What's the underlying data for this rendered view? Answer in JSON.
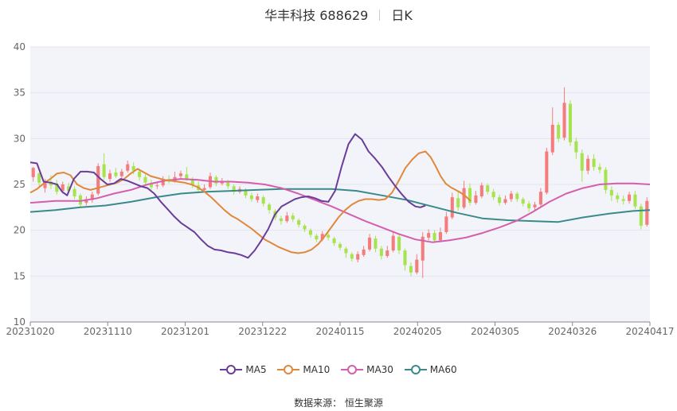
{
  "header": {
    "stock_name": "华丰科技 688629",
    "period": "日K"
  },
  "source": "数据来源： 恒生聚源",
  "chart_data": {
    "type": "candlestick",
    "ylim": [
      10,
      40
    ],
    "yticks": [
      "40",
      "35",
      "30",
      "25",
      "20",
      "15",
      "10"
    ],
    "x_labels": [
      "20231020",
      "20231110",
      "20231201",
      "20231222",
      "20240115",
      "20240205",
      "20240305",
      "20240326",
      "20240417"
    ],
    "colors": {
      "up": "#f47c7c",
      "down": "#a6e34d",
      "MA5": "#6a3d9a",
      "MA10": "#e0883c",
      "MA30": "#d45fac",
      "MA60": "#3a8a8a"
    },
    "candles": [
      [
        25.8,
        26.8,
        26.9,
        25.3
      ],
      [
        26.2,
        25.2,
        26.3,
        24.8
      ],
      [
        24.6,
        25.4,
        25.6,
        24.1
      ],
      [
        25.3,
        24.9,
        26.0,
        24.5
      ],
      [
        25.1,
        24.2,
        25.5,
        23.9
      ],
      [
        24.3,
        25.0,
        25.3,
        24.0
      ],
      [
        24.8,
        24.3,
        25.2,
        24.0
      ],
      [
        24.5,
        23.7,
        24.8,
        23.4
      ],
      [
        23.8,
        22.8,
        24.0,
        22.5
      ],
      [
        23.0,
        23.4,
        23.7,
        22.7
      ],
      [
        23.3,
        23.9,
        24.2,
        23.0
      ],
      [
        24.0,
        27.0,
        27.3,
        23.8
      ],
      [
        27.2,
        25.8,
        28.4,
        25.5
      ],
      [
        25.6,
        26.2,
        26.6,
        25.3
      ],
      [
        26.3,
        25.9,
        26.8,
        25.7
      ],
      [
        25.9,
        26.4,
        26.7,
        25.6
      ],
      [
        26.5,
        27.2,
        27.6,
        26.3
      ],
      [
        27.0,
        26.5,
        27.4,
        26.1
      ],
      [
        26.4,
        25.8,
        26.7,
        25.4
      ],
      [
        25.8,
        25.2,
        26.1,
        24.9
      ],
      [
        25.1,
        24.7,
        25.5,
        24.4
      ],
      [
        24.8,
        24.9,
        25.3,
        24.5
      ],
      [
        24.9,
        25.6,
        25.9,
        24.7
      ],
      [
        25.6,
        25.3,
        26.0,
        25.1
      ],
      [
        25.3,
        25.8,
        26.4,
        25.2
      ],
      [
        25.9,
        26.2,
        26.5,
        25.6
      ],
      [
        26.1,
        25.6,
        26.9,
        25.4
      ],
      [
        25.5,
        24.9,
        25.8,
        24.6
      ],
      [
        24.9,
        24.4,
        25.3,
        24.1
      ],
      [
        24.4,
        24.6,
        25.0,
        24.2
      ],
      [
        24.7,
        25.9,
        26.3,
        24.5
      ],
      [
        25.8,
        25.1,
        26.0,
        24.8
      ],
      [
        25.1,
        25.3,
        25.7,
        24.9
      ],
      [
        25.2,
        24.8,
        25.5,
        24.5
      ],
      [
        24.8,
        24.2,
        25.0,
        23.9
      ],
      [
        24.2,
        24.5,
        24.8,
        24.0
      ],
      [
        24.4,
        23.8,
        24.6,
        23.5
      ],
      [
        23.8,
        23.4,
        24.1,
        23.1
      ],
      [
        23.3,
        23.7,
        24.0,
        23.0
      ],
      [
        23.6,
        22.9,
        23.8,
        22.6
      ],
      [
        22.8,
        22.2,
        23.0,
        21.8
      ],
      [
        22.1,
        21.4,
        22.3,
        21.1
      ],
      [
        21.3,
        21.0,
        21.6,
        20.6
      ],
      [
        21.0,
        21.6,
        22.0,
        20.8
      ],
      [
        21.6,
        21.2,
        21.9,
        20.9
      ],
      [
        21.1,
        20.6,
        21.3,
        20.3
      ],
      [
        20.5,
        20.1,
        20.7,
        19.8
      ],
      [
        20.0,
        19.5,
        20.2,
        19.2
      ],
      [
        19.4,
        19.0,
        19.6,
        18.7
      ],
      [
        19.0,
        19.6,
        19.9,
        18.8
      ],
      [
        19.5,
        19.2,
        19.7,
        18.9
      ],
      [
        19.1,
        18.6,
        19.3,
        18.3
      ],
      [
        18.5,
        18.1,
        18.7,
        17.8
      ],
      [
        18.0,
        17.5,
        18.2,
        17.0
      ],
      [
        17.4,
        16.9,
        17.6,
        16.6
      ],
      [
        16.8,
        17.4,
        17.7,
        16.5
      ],
      [
        17.3,
        17.9,
        18.3,
        17.1
      ],
      [
        17.9,
        19.2,
        19.6,
        17.7
      ],
      [
        19.1,
        18.0,
        19.4,
        17.6
      ],
      [
        18.0,
        17.2,
        18.3,
        16.8
      ],
      [
        17.2,
        17.8,
        18.3,
        17.0
      ],
      [
        17.8,
        19.4,
        19.9,
        17.6
      ],
      [
        19.3,
        17.8,
        19.6,
        17.4
      ],
      [
        17.8,
        16.2,
        18.0,
        15.6
      ],
      [
        16.1,
        15.4,
        16.5,
        15.0
      ],
      [
        15.4,
        16.8,
        17.4,
        15.2
      ],
      [
        16.7,
        19.3,
        19.8,
        14.8
      ],
      [
        19.2,
        19.7,
        20.1,
        18.9
      ],
      [
        19.7,
        18.9,
        20.0,
        18.6
      ],
      [
        18.9,
        19.8,
        20.3,
        18.7
      ],
      [
        19.8,
        21.5,
        22.0,
        19.6
      ],
      [
        21.4,
        23.6,
        24.1,
        21.2
      ],
      [
        23.5,
        22.5,
        24.3,
        22.1
      ],
      [
        22.5,
        24.6,
        25.4,
        22.3
      ],
      [
        24.6,
        23.0,
        25.1,
        22.7
      ],
      [
        23.0,
        23.8,
        24.3,
        22.8
      ],
      [
        23.7,
        24.9,
        25.2,
        23.5
      ],
      [
        24.9,
        24.2,
        25.1,
        23.9
      ],
      [
        24.2,
        23.6,
        24.5,
        23.3
      ],
      [
        23.6,
        23.0,
        23.9,
        22.7
      ],
      [
        23.0,
        23.4,
        23.8,
        22.8
      ],
      [
        23.4,
        24.0,
        24.3,
        23.1
      ],
      [
        24.0,
        23.4,
        24.2,
        23.1
      ],
      [
        23.4,
        22.9,
        23.6,
        22.6
      ],
      [
        22.9,
        22.4,
        23.2,
        22.0
      ],
      [
        22.5,
        22.8,
        23.1,
        22.1
      ],
      [
        22.8,
        24.2,
        24.6,
        22.6
      ],
      [
        24.1,
        28.6,
        29.0,
        23.9
      ],
      [
        28.5,
        31.5,
        33.4,
        28.2
      ],
      [
        31.5,
        30.0,
        31.8,
        29.6
      ],
      [
        30.1,
        33.9,
        35.6,
        29.8
      ],
      [
        33.8,
        29.6,
        34.2,
        29.2
      ],
      [
        29.7,
        28.5,
        30.1,
        27.8
      ],
      [
        28.4,
        26.5,
        28.8,
        25.3
      ],
      [
        26.5,
        27.8,
        28.2,
        26.1
      ],
      [
        27.8,
        26.9,
        28.3,
        26.5
      ],
      [
        26.9,
        26.6,
        27.3,
        26.2
      ],
      [
        26.6,
        24.4,
        26.9,
        24.0
      ],
      [
        24.4,
        23.8,
        24.8,
        23.2
      ],
      [
        23.8,
        23.4,
        24.1,
        23.0
      ],
      [
        23.4,
        23.2,
        23.8,
        22.8
      ],
      [
        23.2,
        23.9,
        24.2,
        22.9
      ],
      [
        23.9,
        22.6,
        24.3,
        22.3
      ],
      [
        22.6,
        20.5,
        22.9,
        20.1
      ],
      [
        20.6,
        23.2,
        23.6,
        20.4
      ]
    ],
    "series": [
      {
        "name": "MA5",
        "values": [
          [
            0,
            27.4
          ],
          [
            4,
            27.3
          ],
          [
            8,
            25.3
          ],
          [
            12,
            25.2
          ],
          [
            16,
            25.0
          ],
          [
            19,
            24.2
          ],
          [
            22,
            23.8
          ],
          [
            26,
            25.6
          ],
          [
            30,
            26.4
          ],
          [
            34,
            26.4
          ],
          [
            38,
            26.3
          ],
          [
            42,
            25.6
          ],
          [
            46,
            25.0
          ],
          [
            50,
            25.1
          ],
          [
            54,
            25.6
          ],
          [
            58,
            25.4
          ],
          [
            62,
            25.1
          ],
          [
            66,
            24.8
          ],
          [
            70,
            24.6
          ],
          [
            74,
            24.0
          ],
          [
            78,
            23.1
          ],
          [
            82,
            22.3
          ],
          [
            86,
            21.5
          ],
          [
            90,
            20.8
          ],
          [
            94,
            20.3
          ],
          [
            98,
            19.8
          ],
          [
            102,
            19.0
          ],
          [
            106,
            18.3
          ],
          [
            110,
            17.9
          ],
          [
            114,
            17.8
          ],
          [
            118,
            17.6
          ],
          [
            122,
            17.5
          ],
          [
            126,
            17.3
          ],
          [
            130,
            17.0
          ],
          [
            134,
            17.8
          ],
          [
            138,
            18.9
          ],
          [
            142,
            20.1
          ],
          [
            146,
            21.7
          ],
          [
            150,
            22.6
          ],
          [
            154,
            23.0
          ],
          [
            158,
            23.4
          ],
          [
            162,
            23.6
          ],
          [
            166,
            23.7
          ],
          [
            170,
            23.5
          ],
          [
            174,
            23.2
          ],
          [
            178,
            23.1
          ],
          [
            182,
            24.3
          ],
          [
            186,
            27.0
          ],
          [
            190,
            29.4
          ],
          [
            194,
            30.5
          ],
          [
            198,
            29.9
          ],
          [
            202,
            28.6
          ],
          [
            206,
            27.8
          ],
          [
            210,
            26.9
          ],
          [
            214,
            25.8
          ],
          [
            218,
            24.8
          ],
          [
            222,
            23.9
          ],
          [
            226,
            23.1
          ],
          [
            230,
            22.6
          ],
          [
            233,
            22.5
          ],
          [
            236,
            22.7
          ]
        ]
      },
      {
        "name": "MA10",
        "values": [
          [
            0,
            24.1
          ],
          [
            4,
            24.5
          ],
          [
            8,
            25.1
          ],
          [
            12,
            25.6
          ],
          [
            16,
            26.2
          ],
          [
            20,
            26.3
          ],
          [
            24,
            26.0
          ],
          [
            28,
            25.0
          ],
          [
            32,
            24.6
          ],
          [
            36,
            24.4
          ],
          [
            40,
            24.6
          ],
          [
            44,
            24.8
          ],
          [
            48,
            25.0
          ],
          [
            52,
            25.2
          ],
          [
            56,
            25.6
          ],
          [
            60,
            26.2
          ],
          [
            64,
            26.7
          ],
          [
            68,
            26.3
          ],
          [
            72,
            25.9
          ],
          [
            76,
            25.7
          ],
          [
            80,
            25.5
          ],
          [
            84,
            25.4
          ],
          [
            88,
            25.3
          ],
          [
            92,
            25.2
          ],
          [
            96,
            25.0
          ],
          [
            100,
            24.7
          ],
          [
            104,
            24.2
          ],
          [
            108,
            23.6
          ],
          [
            112,
            22.9
          ],
          [
            116,
            22.2
          ],
          [
            120,
            21.6
          ],
          [
            124,
            21.2
          ],
          [
            128,
            20.7
          ],
          [
            132,
            20.2
          ],
          [
            136,
            19.6
          ],
          [
            140,
            19.0
          ],
          [
            144,
            18.6
          ],
          [
            148,
            18.2
          ],
          [
            152,
            17.9
          ],
          [
            156,
            17.6
          ],
          [
            160,
            17.5
          ],
          [
            164,
            17.6
          ],
          [
            168,
            17.9
          ],
          [
            172,
            18.5
          ],
          [
            176,
            19.4
          ],
          [
            180,
            20.4
          ],
          [
            184,
            21.4
          ],
          [
            188,
            22.2
          ],
          [
            192,
            22.8
          ],
          [
            196,
            23.2
          ],
          [
            200,
            23.4
          ],
          [
            204,
            23.4
          ],
          [
            208,
            23.3
          ],
          [
            212,
            23.4
          ],
          [
            216,
            24.1
          ],
          [
            220,
            25.4
          ],
          [
            224,
            26.8
          ],
          [
            228,
            27.7
          ],
          [
            232,
            28.4
          ],
          [
            236,
            28.6
          ],
          [
            239,
            28.0
          ],
          [
            242,
            27.0
          ],
          [
            245,
            25.9
          ],
          [
            248,
            25.1
          ],
          [
            251,
            24.7
          ],
          [
            254,
            24.4
          ],
          [
            257,
            24.1
          ],
          [
            260,
            23.7
          ],
          [
            263,
            23.2
          ]
        ]
      },
      {
        "name": "MA30",
        "values": [
          [
            0,
            23.0
          ],
          [
            15,
            23.2
          ],
          [
            30,
            23.2
          ],
          [
            40,
            23.5
          ],
          [
            50,
            24.0
          ],
          [
            60,
            24.4
          ],
          [
            70,
            25.0
          ],
          [
            80,
            25.4
          ],
          [
            90,
            25.6
          ],
          [
            100,
            25.5
          ],
          [
            110,
            25.3
          ],
          [
            120,
            25.3
          ],
          [
            130,
            25.2
          ],
          [
            140,
            25.0
          ],
          [
            150,
            24.6
          ],
          [
            160,
            24.0
          ],
          [
            170,
            23.3
          ],
          [
            180,
            22.6
          ],
          [
            190,
            21.8
          ],
          [
            200,
            21.0
          ],
          [
            210,
            20.3
          ],
          [
            220,
            19.6
          ],
          [
            230,
            19.0
          ],
          [
            240,
            18.7
          ],
          [
            250,
            18.9
          ],
          [
            260,
            19.2
          ],
          [
            270,
            19.7
          ],
          [
            280,
            20.3
          ],
          [
            290,
            21.0
          ],
          [
            300,
            22.0
          ],
          [
            310,
            23.1
          ],
          [
            320,
            24.0
          ],
          [
            330,
            24.6
          ],
          [
            340,
            25.0
          ],
          [
            350,
            25.1
          ],
          [
            360,
            25.1
          ],
          [
            370,
            25.0
          ]
        ]
      },
      {
        "name": "MA60",
        "values": [
          [
            0,
            22.0
          ],
          [
            15,
            22.2
          ],
          [
            30,
            22.5
          ],
          [
            45,
            22.7
          ],
          [
            60,
            23.1
          ],
          [
            75,
            23.6
          ],
          [
            90,
            24.0
          ],
          [
            105,
            24.2
          ],
          [
            120,
            24.3
          ],
          [
            135,
            24.4
          ],
          [
            150,
            24.5
          ],
          [
            165,
            24.5
          ],
          [
            180,
            24.5
          ],
          [
            195,
            24.3
          ],
          [
            210,
            23.8
          ],
          [
            225,
            23.3
          ],
          [
            240,
            22.6
          ],
          [
            255,
            21.9
          ],
          [
            270,
            21.3
          ],
          [
            285,
            21.1
          ],
          [
            300,
            21.0
          ],
          [
            315,
            20.9
          ],
          [
            330,
            21.4
          ],
          [
            345,
            21.8
          ],
          [
            360,
            22.1
          ],
          [
            370,
            22.2
          ]
        ]
      }
    ]
  }
}
